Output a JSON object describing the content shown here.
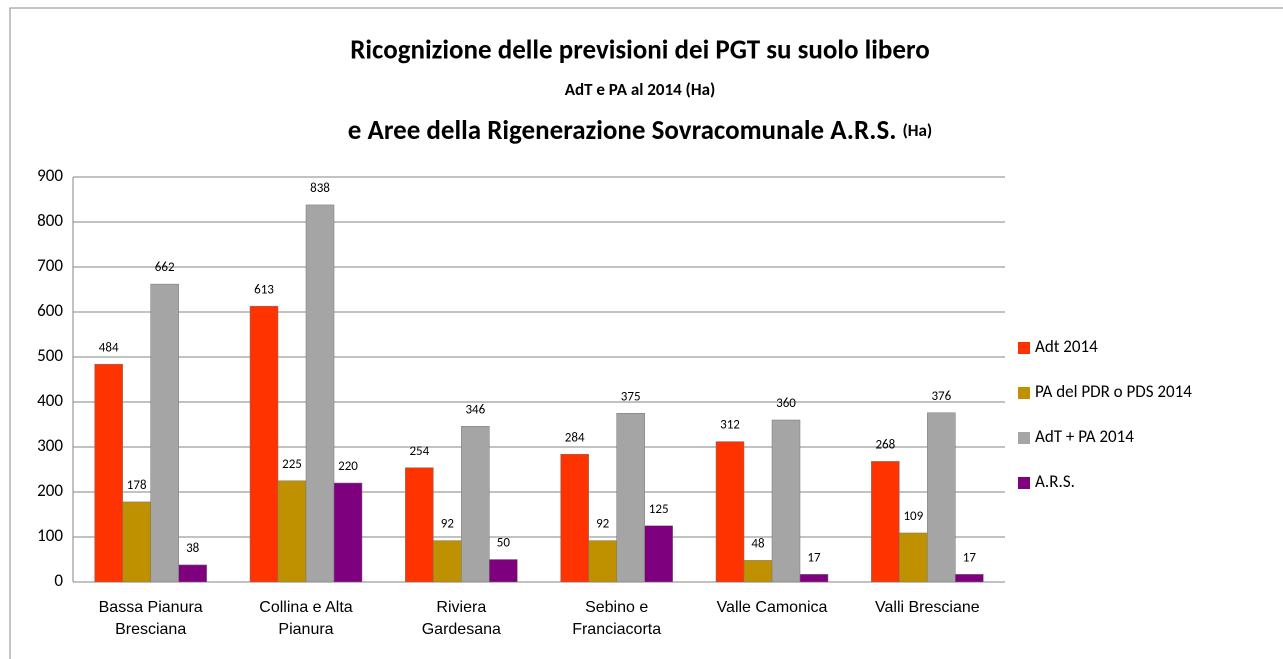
{
  "chart_data": {
    "type": "bar",
    "title": "Ricognizione delle previsioni dei PGT su suolo libero",
    "subtitle": "AdT e PA al 2014 (Ha)",
    "title2": "e Aree della Rigenerazione Sovracomunale A.R.S.",
    "title2_unit": "(Ha)",
    "categories": [
      "Bassa Pianura\nBresciana",
      "Collina e Alta\nPianura",
      "Riviera\nGardesana",
      "Sebino e\nFranciacorta",
      "Valle Camonica",
      "Valli Bresciane"
    ],
    "series": [
      {
        "name": "Adt 2014",
        "color": "#ff3300",
        "values": [
          484,
          613,
          254,
          284,
          312,
          268
        ]
      },
      {
        "name": "PA del PDR o PDS 2014",
        "color": "#bf9000",
        "values": [
          178,
          225,
          92,
          92,
          48,
          109
        ]
      },
      {
        "name": "AdT + PA 2014",
        "color": "#a5a5a5",
        "values": [
          662,
          838,
          346,
          375,
          360,
          376
        ]
      },
      {
        "name": "A.R.S.",
        "color": "#7f007f",
        "values": [
          38,
          220,
          50,
          125,
          17,
          17
        ]
      }
    ],
    "ylim": [
      0,
      900
    ],
    "yticks": [
      0,
      100,
      200,
      300,
      400,
      500,
      600,
      700,
      800,
      900
    ],
    "grid": true,
    "legend": "right"
  }
}
